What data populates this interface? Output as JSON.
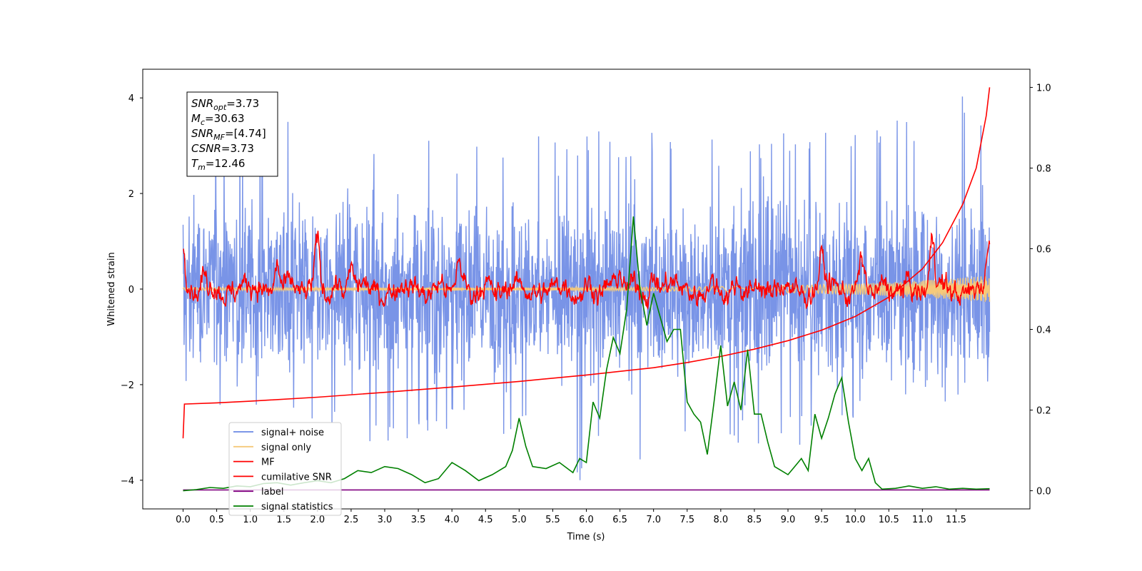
{
  "chart_data": {
    "type": "line",
    "xlabel": "Time (s)",
    "ylabel": "Whitened strain",
    "xlim": [
      -0.6,
      12.6
    ],
    "ylim": [
      -4.6,
      4.6
    ],
    "y2lim": [
      -0.045,
      1.045
    ],
    "x_ticks": [
      0.0,
      0.5,
      1.0,
      1.5,
      2.0,
      2.5,
      3.0,
      3.5,
      4.0,
      4.5,
      5.0,
      5.5,
      6.0,
      6.5,
      7.0,
      7.5,
      8.0,
      8.5,
      9.0,
      9.5,
      10.0,
      10.5,
      11.0,
      11.5
    ],
    "x_tick_labels": [
      "0.0",
      "0.5",
      "1.0",
      "1.5",
      "2.0",
      "2.5",
      "3.0",
      "3.5",
      "4.0",
      "4.5",
      "5.0",
      "5.5",
      "6.0",
      "6.5",
      "7.0",
      "7.5",
      "8.0",
      "8.5",
      "9.0",
      "9.5",
      "10.0",
      "10.5",
      "11.0",
      "11.5"
    ],
    "y_ticks": [
      4,
      2,
      0,
      -2,
      -4
    ],
    "y_tick_labels": [
      "4",
      "2",
      "0",
      "−2",
      "−4"
    ],
    "y2_ticks": [
      0.0,
      0.2,
      0.4,
      0.6,
      0.8,
      1.0
    ],
    "y2_tick_labels": [
      "0.0",
      "0.2",
      "0.4",
      "0.6",
      "0.8",
      "1.0"
    ],
    "legend_position": "lower-left",
    "annotation": [
      {
        "base": "SNR",
        "sub": "opt",
        "value": "=3.73"
      },
      {
        "base": "M",
        "sub": "c",
        "value": "=30.63"
      },
      {
        "base": "SNR",
        "sub": "MF",
        "value": "=[4.74]"
      },
      {
        "base": "CSNR",
        "sub": "",
        "value": "=3.73"
      },
      {
        "base": "T",
        "sub": "m",
        "value": "=12.46"
      }
    ],
    "series": [
      {
        "name": "signal+ noise",
        "color": "#6a88e4",
        "axis": "left",
        "style": "noise",
        "x_range": [
          0,
          12.0
        ],
        "amplitude": 1.1,
        "envelope": [
          [
            0.0,
            3.2
          ],
          [
            0.5,
            3.5
          ],
          [
            1.0,
            3.6
          ],
          [
            1.5,
            3.8
          ],
          [
            2.0,
            2.8
          ],
          [
            3.0,
            3.5
          ],
          [
            4.0,
            3.0
          ],
          [
            5.0,
            3.2
          ],
          [
            6.0,
            3.3
          ],
          [
            7.0,
            3.4
          ],
          [
            8.0,
            3.2
          ],
          [
            9.0,
            3.3
          ],
          [
            10.0,
            3.3
          ],
          [
            11.0,
            3.8
          ],
          [
            11.8,
            4.2
          ],
          [
            12.0,
            3.0
          ]
        ],
        "min_envelope": [
          [
            0.0,
            -2.6
          ],
          [
            1.0,
            -2.8
          ],
          [
            2.0,
            -3.0
          ],
          [
            3.0,
            -3.3
          ],
          [
            4.0,
            -2.9
          ],
          [
            5.0,
            -3.2
          ],
          [
            5.9,
            -4.1
          ],
          [
            6.0,
            -3.3
          ],
          [
            7.0,
            -3.7
          ],
          [
            8.0,
            -3.3
          ],
          [
            9.0,
            -3.3
          ],
          [
            10.0,
            -3.3
          ],
          [
            11.0,
            -3.2
          ],
          [
            12.0,
            -2.0
          ]
        ]
      },
      {
        "name": "signal only",
        "color": "#f5c97a",
        "axis": "left",
        "style": "chirp",
        "x_range": [
          0,
          12.0
        ],
        "amplitude_start": 0.03,
        "amplitude_end": 0.28
      },
      {
        "name": "MF",
        "color": "#ff0000",
        "axis": "left",
        "style": "matched-filter",
        "x_range": [
          0,
          12.0
        ],
        "peaks": [
          [
            0.0,
            0.95
          ],
          [
            0.3,
            0.35
          ],
          [
            1.4,
            0.6
          ],
          [
            2.0,
            0.9
          ],
          [
            2.5,
            0.5
          ],
          [
            4.1,
            0.6
          ],
          [
            6.5,
            0.5
          ],
          [
            7.0,
            0.35
          ],
          [
            9.5,
            0.65
          ],
          [
            10.1,
            0.5
          ],
          [
            11.15,
            1.0
          ],
          [
            12.0,
            0.95
          ]
        ]
      },
      {
        "name": "cumilative SNR",
        "color": "#ff0000",
        "axis": "right",
        "x": [
          0.0,
          0.02,
          0.5,
          1.0,
          2.0,
          3.0,
          4.0,
          5.0,
          6.0,
          7.0,
          7.5,
          8.0,
          8.5,
          9.0,
          9.5,
          10.0,
          10.5,
          11.0,
          11.3,
          11.6,
          11.8,
          11.95,
          12.0
        ],
        "values": [
          0.13,
          0.215,
          0.218,
          0.222,
          0.232,
          0.244,
          0.257,
          0.271,
          0.287,
          0.305,
          0.318,
          0.333,
          0.351,
          0.372,
          0.398,
          0.432,
          0.48,
          0.55,
          0.615,
          0.71,
          0.8,
          0.93,
          1.0
        ]
      },
      {
        "name": "label",
        "color": "#800080",
        "axis": "right",
        "x": [
          0.0,
          12.0
        ],
        "values": [
          0.002,
          0.002
        ]
      },
      {
        "name": "signal statistics",
        "color": "#008000",
        "axis": "right",
        "x": [
          0.0,
          0.2,
          0.4,
          0.6,
          0.8,
          1.0,
          1.2,
          1.4,
          1.6,
          1.8,
          2.0,
          2.2,
          2.4,
          2.6,
          2.8,
          3.0,
          3.2,
          3.4,
          3.6,
          3.8,
          4.0,
          4.2,
          4.4,
          4.6,
          4.8,
          4.9,
          5.0,
          5.1,
          5.2,
          5.4,
          5.6,
          5.8,
          5.9,
          6.0,
          6.1,
          6.2,
          6.3,
          6.4,
          6.5,
          6.6,
          6.7,
          6.8,
          6.9,
          7.0,
          7.1,
          7.2,
          7.3,
          7.4,
          7.5,
          7.6,
          7.7,
          7.8,
          7.9,
          8.0,
          8.1,
          8.2,
          8.3,
          8.4,
          8.5,
          8.6,
          8.7,
          8.8,
          8.9,
          9.0,
          9.1,
          9.2,
          9.3,
          9.4,
          9.5,
          9.6,
          9.7,
          9.8,
          9.9,
          10.0,
          10.1,
          10.2,
          10.3,
          10.4,
          10.6,
          10.8,
          11.0,
          11.2,
          11.4,
          11.6,
          11.8,
          12.0
        ],
        "values": [
          0.0,
          0.003,
          0.008,
          0.006,
          0.012,
          0.01,
          0.018,
          0.02,
          0.014,
          0.02,
          0.025,
          0.02,
          0.03,
          0.05,
          0.045,
          0.06,
          0.055,
          0.04,
          0.02,
          0.03,
          0.07,
          0.05,
          0.025,
          0.04,
          0.06,
          0.1,
          0.18,
          0.11,
          0.06,
          0.055,
          0.07,
          0.045,
          0.08,
          0.07,
          0.22,
          0.18,
          0.3,
          0.38,
          0.34,
          0.45,
          0.68,
          0.5,
          0.41,
          0.49,
          0.43,
          0.37,
          0.4,
          0.4,
          0.22,
          0.19,
          0.17,
          0.09,
          0.22,
          0.36,
          0.21,
          0.27,
          0.2,
          0.35,
          0.19,
          0.19,
          0.12,
          0.06,
          0.05,
          0.04,
          0.06,
          0.08,
          0.05,
          0.19,
          0.13,
          0.18,
          0.24,
          0.28,
          0.17,
          0.08,
          0.05,
          0.08,
          0.02,
          0.004,
          0.006,
          0.012,
          0.006,
          0.01,
          0.004,
          0.006,
          0.004,
          0.005
        ]
      }
    ]
  }
}
